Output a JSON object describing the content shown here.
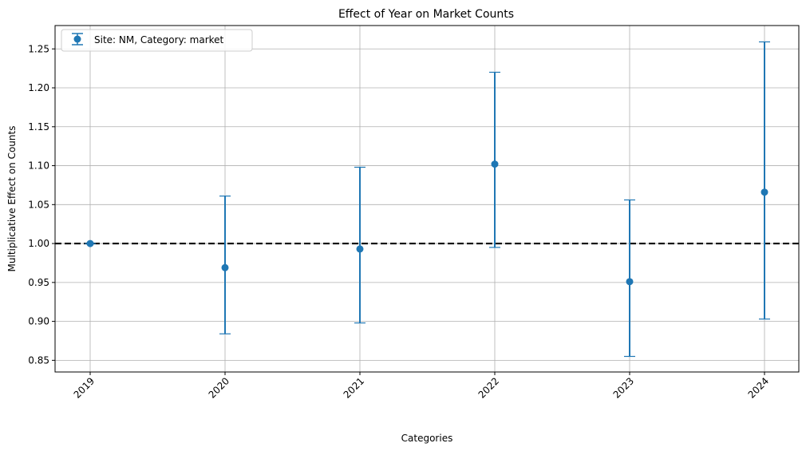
{
  "chart_data": {
    "type": "scatter",
    "title": "Effect of Year on Market Counts",
    "xlabel": "Categories",
    "ylabel": "Multiplicative Effect on Counts",
    "categories": [
      "2019",
      "2020",
      "2021",
      "2022",
      "2023",
      "2024"
    ],
    "series": [
      {
        "name": "Site: NM, Category: market",
        "values": [
          1.0,
          0.969,
          0.993,
          1.102,
          0.951,
          1.066
        ],
        "lower": [
          1.0,
          0.884,
          0.898,
          0.995,
          0.855,
          0.903
        ],
        "upper": [
          1.0,
          1.061,
          1.098,
          1.22,
          1.056,
          1.259
        ],
        "color": "#1f77b4"
      }
    ],
    "ylim": [
      0.835,
      1.28
    ],
    "yticks": [
      0.85,
      0.9,
      0.95,
      1.0,
      1.05,
      1.1,
      1.15,
      1.2,
      1.25
    ],
    "ytick_labels": [
      "0.85",
      "0.90",
      "0.95",
      "1.00",
      "1.05",
      "1.10",
      "1.15",
      "1.20",
      "1.25"
    ],
    "reference_line": {
      "y": 1.0,
      "style": "dashed",
      "color": "#000000"
    },
    "grid": true,
    "legend_position": "top-left"
  }
}
